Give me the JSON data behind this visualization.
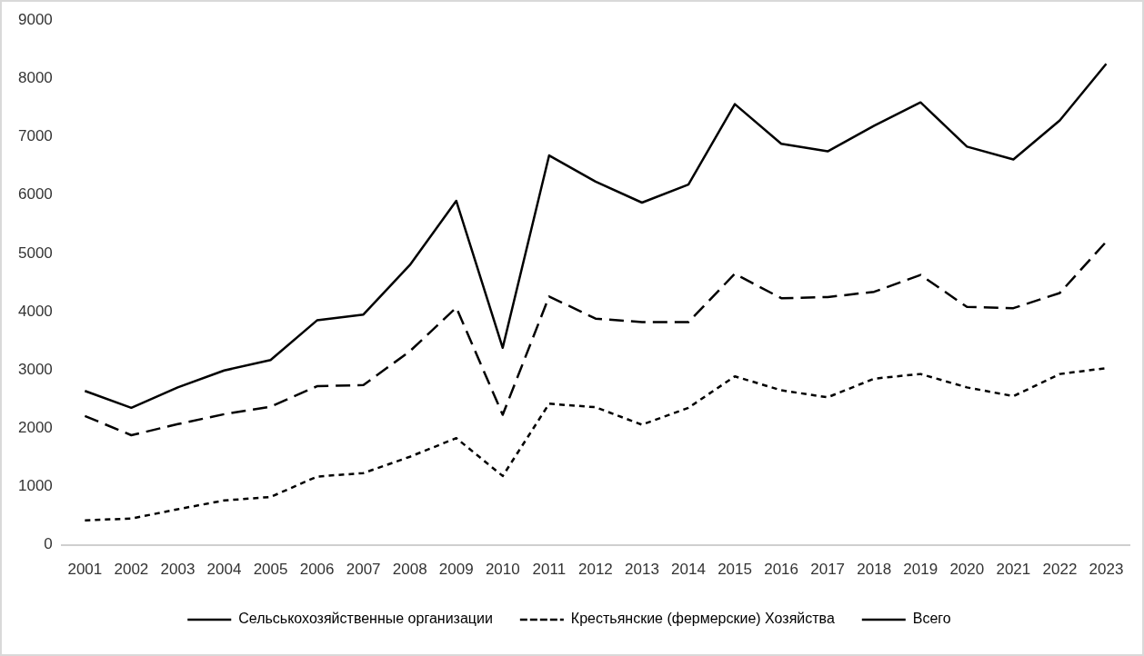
{
  "chart_data": {
    "type": "line",
    "categories": [
      "2001",
      "2002",
      "2003",
      "2004",
      "2005",
      "2006",
      "2007",
      "2008",
      "2009",
      "2010",
      "2011",
      "2012",
      "2013",
      "2014",
      "2015",
      "2016",
      "2017",
      "2018",
      "2019",
      "2020",
      "2021",
      "2022",
      "2023"
    ],
    "series": [
      {
        "name": "Сельськохозяйственные организации",
        "color": "#000000",
        "line_style": "dashed",
        "values": [
          2210,
          1880,
          2070,
          2240,
          2370,
          2720,
          2740,
          3320,
          4070,
          2230,
          4260,
          3880,
          3820,
          3820,
          4650,
          4230,
          4250,
          4340,
          4630,
          4080,
          4060,
          4320,
          5200
        ]
      },
      {
        "name": "Крестьянские (фермерские) Хозяйства",
        "color": "#000000",
        "line_style": "dotted",
        "values": [
          420,
          450,
          610,
          760,
          820,
          1170,
          1230,
          1510,
          1830,
          1180,
          2420,
          2360,
          2060,
          2350,
          2890,
          2650,
          2530,
          2850,
          2930,
          2700,
          2550,
          2930,
          3030
        ]
      },
      {
        "name": "Всего",
        "color": "#000000",
        "line_style": "solid",
        "values": [
          2640,
          2350,
          2700,
          2990,
          3170,
          3850,
          3950,
          4800,
          5900,
          3380,
          6680,
          6230,
          5870,
          6180,
          7560,
          6880,
          6750,
          7190,
          7590,
          6830,
          6610,
          7280,
          8250
        ]
      }
    ],
    "ylim": [
      0,
      9000
    ],
    "yticks": [
      0,
      1000,
      2000,
      3000,
      4000,
      5000,
      6000,
      7000,
      8000,
      9000
    ],
    "grid": false,
    "legend": "bottom",
    "marker": "none"
  }
}
